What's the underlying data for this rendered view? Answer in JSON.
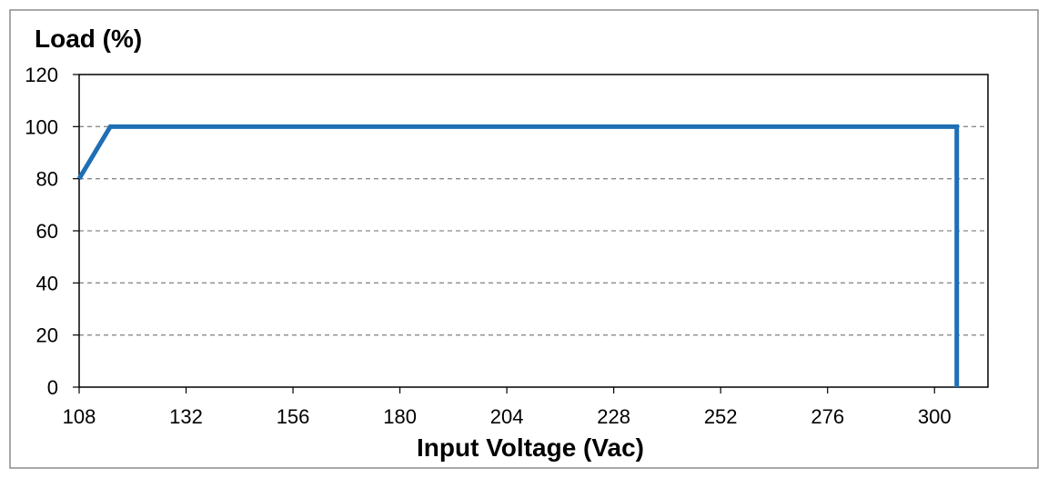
{
  "chart_data": {
    "type": "line",
    "title": "",
    "ylabel": "Load (%)",
    "xlabel": "Input Voltage (Vac)",
    "xlim": [
      108,
      312
    ],
    "ylim": [
      0,
      120
    ],
    "x_ticks": [
      108,
      132,
      156,
      180,
      204,
      228,
      252,
      276,
      300
    ],
    "y_ticks": [
      0,
      20,
      40,
      60,
      80,
      100,
      120
    ],
    "grid": true,
    "legend": "none",
    "series": [
      {
        "color": "#1f6fb5",
        "x": [
          108,
          115,
          305,
          305
        ],
        "y": [
          80,
          100,
          100,
          0
        ]
      }
    ]
  }
}
